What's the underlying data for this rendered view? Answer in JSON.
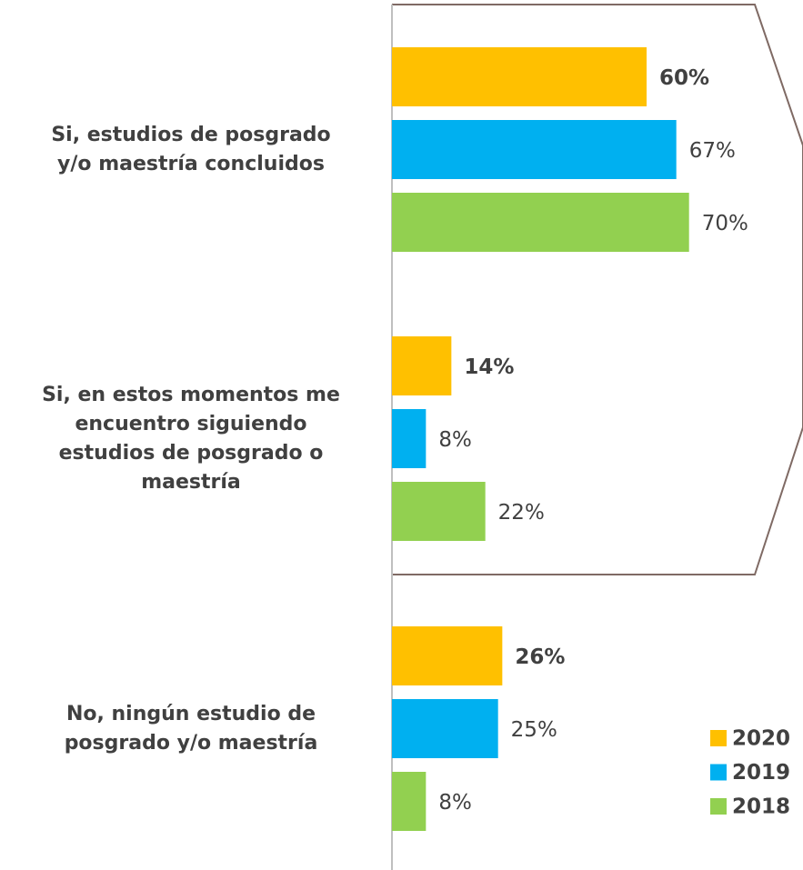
{
  "chart_data": {
    "type": "hbar",
    "categories": [
      "Si, estudios de posgrado\ny/o maestría concluidos",
      "Si, en estos momentos me\nencuentro siguiendo\nestudios de posgrado o\nmaestría",
      "No, ningún estudio de\nposgrado y/o maestría"
    ],
    "series": [
      {
        "name": "2020",
        "color": "#FFC000",
        "values": [
          60,
          14,
          26
        ],
        "value_labels": [
          "60%",
          "14%",
          "26%"
        ]
      },
      {
        "name": "2019",
        "color": "#00B0F0",
        "values": [
          67,
          8,
          25
        ],
        "value_labels": [
          "67%",
          "8%",
          "25%"
        ]
      },
      {
        "name": "2018",
        "color": "#92D050",
        "values": [
          70,
          22,
          8
        ],
        "value_labels": [
          "70%",
          "22%",
          "8%"
        ]
      }
    ],
    "xlim": [
      0,
      100
    ]
  }
}
